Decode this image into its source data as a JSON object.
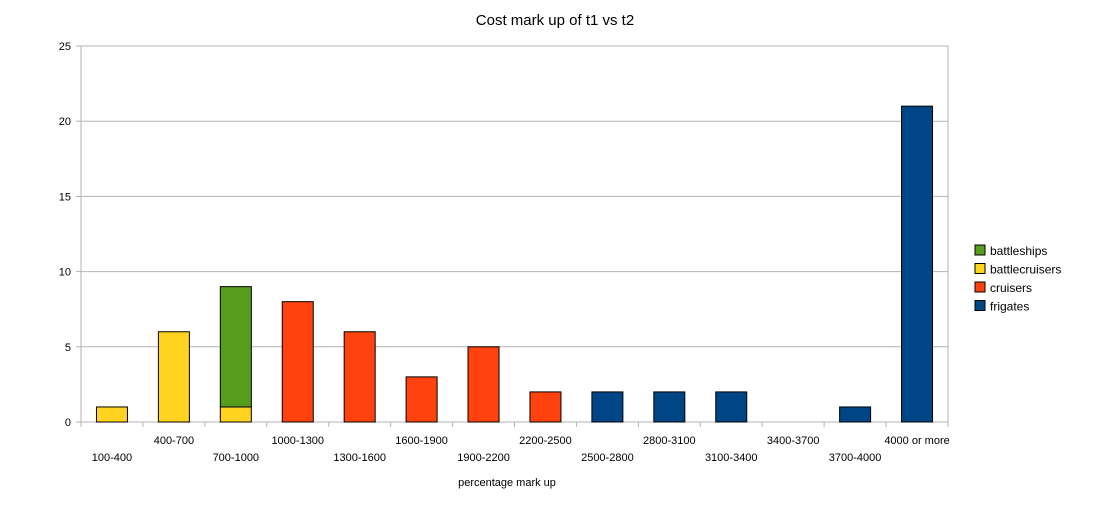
{
  "chart_data": {
    "type": "bar",
    "stacked": true,
    "title": "Cost mark up of t1 vs t2",
    "xlabel": "percentage mark up",
    "ylabel": "",
    "ylim": [
      0,
      25
    ],
    "yticks": [
      0,
      5,
      10,
      15,
      20,
      25
    ],
    "grid": true,
    "legend_position": "right",
    "categories": [
      "100-400",
      "400-700",
      "700-1000",
      "1000-1300",
      "1300-1600",
      "1600-1900",
      "1900-2200",
      "2200-2500",
      "2500-2800",
      "2800-3100",
      "3100-3400",
      "3400-3700",
      "3700-4000",
      "4000 or more"
    ],
    "series": [
      {
        "name": "frigates",
        "color": "#004586",
        "values": [
          0,
          0,
          0,
          0,
          0,
          0,
          0,
          0,
          2,
          2,
          2,
          0,
          1,
          21
        ]
      },
      {
        "name": "cruisers",
        "color": "#ff420e",
        "values": [
          0,
          0,
          0,
          8,
          6,
          3,
          5,
          2,
          0,
          0,
          0,
          0,
          0,
          0
        ]
      },
      {
        "name": "battlecruisers",
        "color": "#ffd320",
        "values": [
          1,
          6,
          1,
          0,
          0,
          0,
          0,
          0,
          0,
          0,
          0,
          0,
          0,
          0
        ]
      },
      {
        "name": "battleships",
        "color": "#579d1c",
        "values": [
          0,
          0,
          8,
          0,
          0,
          0,
          0,
          0,
          0,
          0,
          0,
          0,
          0,
          0
        ]
      }
    ],
    "legend_order": [
      "battleships",
      "battlecruisers",
      "cruisers",
      "frigates"
    ]
  }
}
